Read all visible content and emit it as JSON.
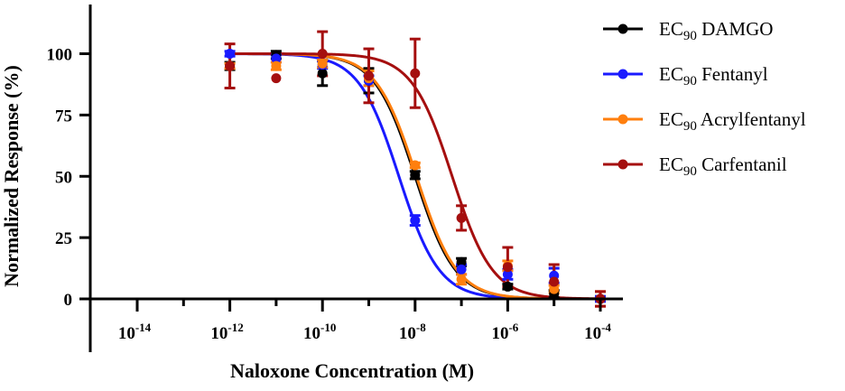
{
  "chart_data": {
    "type": "scatter",
    "title": "",
    "xlabel": "Naloxone Concentration (M)",
    "ylabel": "Normalized  Response (%)",
    "x_scale": "log",
    "xlim_log10": [
      -15.5,
      -4
    ],
    "ylim": [
      0,
      110
    ],
    "x_tick_exponents": [
      -14,
      -12,
      -10,
      -8,
      -6,
      -4
    ],
    "x_tick_base": "10",
    "x_ticks": [
      "-14",
      "-12",
      "-10",
      "-8",
      "-6",
      "-4"
    ],
    "y_ticks": [
      0,
      25,
      50,
      75,
      100
    ],
    "y_tick_labels": [
      "0",
      "25",
      "50",
      "75",
      "100"
    ],
    "grid": false,
    "legend_position": "top-right",
    "series": [
      {
        "name": "EC90 DAMGO",
        "legend_main": "EC",
        "legend_sub": "90",
        "legend_rest": " DAMGO",
        "color": "#000000",
        "log_ic50": -8.0,
        "hill_slope": -1.0,
        "points": [
          {
            "x": -12,
            "y": 95,
            "err": 1.5
          },
          {
            "x": -11,
            "y": 99.5,
            "err": 1.5
          },
          {
            "x": -10,
            "y": 92,
            "err": 5
          },
          {
            "x": -9,
            "y": 89,
            "err": 5
          },
          {
            "x": -8,
            "y": 50.5,
            "err": 1.5
          },
          {
            "x": -7,
            "y": 15,
            "err": 1.5
          },
          {
            "x": -6,
            "y": 5,
            "err": 1
          },
          {
            "x": -5,
            "y": 2,
            "err": 1.5
          },
          {
            "x": -4,
            "y": 0,
            "err": 1
          }
        ]
      },
      {
        "name": "EC90 Fentanyl",
        "legend_main": "EC",
        "legend_sub": "90",
        "legend_rest": " Fentanyl",
        "color": "#1a1aff",
        "log_ic50": -8.35,
        "hill_slope": -1.0,
        "points": [
          {
            "x": -12,
            "y": 100,
            "err": 1
          },
          {
            "x": -11,
            "y": 98,
            "err": 1.5
          },
          {
            "x": -10,
            "y": 95.5,
            "err": 1.5
          },
          {
            "x": -9,
            "y": 89,
            "err": 2
          },
          {
            "x": -8,
            "y": 32,
            "err": 2
          },
          {
            "x": -7,
            "y": 12,
            "err": 2
          },
          {
            "x": -6,
            "y": 10,
            "err": 2
          },
          {
            "x": -5,
            "y": 9.5,
            "err": 3
          },
          {
            "x": -4,
            "y": 0,
            "err": 1
          }
        ]
      },
      {
        "name": "EC90 Acrylfentanyl",
        "legend_main": "EC",
        "legend_sub": "90",
        "legend_rest": " Acrylfentanyl",
        "color": "#ff7f0e",
        "log_ic50": -7.97,
        "hill_slope": -1.0,
        "points": [
          {
            "x": -12,
            "y": 95,
            "err": 1
          },
          {
            "x": -11,
            "y": 95,
            "err": 1.5
          },
          {
            "x": -10,
            "y": 96,
            "err": 1.5
          },
          {
            "x": -9,
            "y": 90,
            "err": 3
          },
          {
            "x": -8,
            "y": 54.5,
            "err": 1
          },
          {
            "x": -7,
            "y": 8,
            "err": 2
          },
          {
            "x": -6,
            "y": 13.5,
            "err": 2
          },
          {
            "x": -5,
            "y": 4,
            "err": 1.5
          },
          {
            "x": -4,
            "y": 0,
            "err": 3
          }
        ]
      },
      {
        "name": "EC90 Carfentanil",
        "legend_main": "EC",
        "legend_sub": "90",
        "legend_rest": " Carfentanil",
        "color": "#a50f0f",
        "log_ic50": -7.2,
        "hill_slope": -1.0,
        "points": [
          {
            "x": -12,
            "y": 95,
            "err": 9
          },
          {
            "x": -11,
            "y": 90,
            "err": 0
          },
          {
            "x": -10,
            "y": 100,
            "err": 9
          },
          {
            "x": -9,
            "y": 91,
            "err": 11
          },
          {
            "x": -8,
            "y": 92,
            "err": 14
          },
          {
            "x": -7,
            "y": 33,
            "err": 5
          },
          {
            "x": -6,
            "y": 13,
            "err": 8
          },
          {
            "x": -5,
            "y": 7,
            "err": 7
          },
          {
            "x": -4,
            "y": 0,
            "err": 3
          }
        ]
      }
    ]
  }
}
